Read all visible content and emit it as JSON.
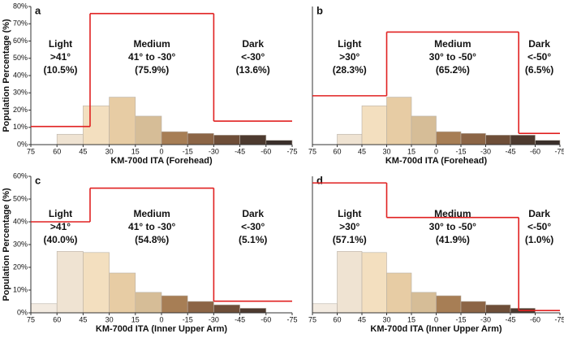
{
  "chart_data": [
    {
      "type": "histogram",
      "title": "a",
      "xlabel": "KM-700d ITA (Forehead)",
      "ylabel": "Population Percentage (%)",
      "bins": [
        75,
        60,
        45,
        30,
        15,
        0,
        -15,
        -30,
        -45,
        -60,
        -75
      ],
      "counts": [
        0,
        6,
        22.5,
        27.5,
        16.5,
        7.5,
        6.5,
        5.5,
        5.5,
        2.5
      ],
      "bar_colors": [
        "#f3ebe1",
        "#efe3d2",
        "#f3dfbf",
        "#e7cca4",
        "#d6bd97",
        "#a77e55",
        "#8c6546",
        "#6e4e38",
        "#4d3a2f",
        "#3a2f2a"
      ],
      "xlim": [
        75,
        -75
      ],
      "xticks": [
        75,
        60,
        45,
        30,
        15,
        0,
        -15,
        -30,
        -45,
        -60,
        -75
      ],
      "ylim": [
        0,
        80
      ],
      "yticks": [
        {
          "value": 0,
          "label": "0%"
        },
        {
          "value": 10,
          "label": "10%"
        },
        {
          "value": 20,
          "label": "20%"
        },
        {
          "value": 30,
          "label": "30%"
        },
        {
          "value": 40,
          "label": "40%"
        },
        {
          "value": 50,
          "label": "50%"
        },
        {
          "value": 60,
          "label": "60%"
        },
        {
          "value": 70,
          "label": "70%"
        },
        {
          "value": 80,
          "label": "80%"
        }
      ],
      "line_color": "#e02020",
      "region_edges": [
        75,
        41,
        -30,
        -75
      ],
      "regions": [
        {
          "name": "Light",
          "range": ">41°",
          "value": 10.5,
          "value_label": "(10.5%)"
        },
        {
          "name": "Medium",
          "range": "41° to -30°",
          "value": 75.9,
          "value_label": "(75.9%)"
        },
        {
          "name": "Dark",
          "range": "<-30°",
          "value": 13.6,
          "value_label": "(13.6%)"
        }
      ]
    },
    {
      "type": "histogram",
      "title": "b",
      "xlabel": "KM-700d ITA (Forehead)",
      "bins": [
        75,
        60,
        45,
        30,
        15,
        0,
        -15,
        -30,
        -45,
        -60,
        -75
      ],
      "counts": [
        0,
        6,
        22.5,
        27.5,
        16.5,
        7.5,
        6.5,
        5.5,
        5.5,
        2.5
      ],
      "bar_colors": [
        "#f3ebe1",
        "#efe3d2",
        "#f3dfbf",
        "#e7cca4",
        "#d6bd97",
        "#a77e55",
        "#8c6546",
        "#6e4e38",
        "#4d3a2f",
        "#3a2f2a"
      ],
      "xlim": [
        75,
        -75
      ],
      "xticks": [
        75,
        60,
        45,
        30,
        15,
        0,
        -15,
        -30,
        -45,
        -60,
        -75
      ],
      "ylim": [
        0,
        80
      ],
      "line_color": "#e02020",
      "region_edges": [
        75,
        30,
        -50,
        -75
      ],
      "regions": [
        {
          "name": "Light",
          "range": ">30°",
          "value": 28.3,
          "value_label": "(28.3%)"
        },
        {
          "name": "Medium",
          "range": "30° to -50°",
          "value": 65.2,
          "value_label": "(65.2%)"
        },
        {
          "name": "Dark",
          "range": "<-50°",
          "value": 6.5,
          "value_label": "(6.5%)"
        }
      ]
    },
    {
      "type": "histogram",
      "title": "c",
      "xlabel": "KM-700d ITA (Inner Upper Arm)",
      "ylabel": "Population Percentage (%)",
      "bins": [
        75,
        60,
        45,
        30,
        15,
        0,
        -15,
        -30,
        -45,
        -60,
        -75
      ],
      "counts": [
        4,
        27,
        26.5,
        17.5,
        9,
        7.5,
        5,
        3.5,
        2,
        0
      ],
      "bar_colors": [
        "#f3ebe1",
        "#efe3d2",
        "#f3dfbf",
        "#e7cca4",
        "#d6bd97",
        "#a77e55",
        "#8c6546",
        "#6e4e38",
        "#4d3a2f",
        "#3a2f2a"
      ],
      "xlim": [
        75,
        -75
      ],
      "xticks": [
        75,
        60,
        45,
        30,
        15,
        0,
        -15,
        -30,
        -45,
        -60,
        -75
      ],
      "ylim": [
        0,
        60
      ],
      "yticks": [
        {
          "value": 0,
          "label": "0%"
        },
        {
          "value": 10,
          "label": "10%"
        },
        {
          "value": 20,
          "label": "20%"
        },
        {
          "value": 30,
          "label": "30%"
        },
        {
          "value": 40,
          "label": "40%"
        },
        {
          "value": 50,
          "label": "50%"
        },
        {
          "value": 60,
          "label": "60%"
        }
      ],
      "line_color": "#e02020",
      "region_edges": [
        75,
        41,
        -30,
        -75
      ],
      "regions": [
        {
          "name": "Light",
          "range": ">41°",
          "value": 40.0,
          "value_label": "(40.0%)"
        },
        {
          "name": "Medium",
          "range": "41° to -30°",
          "value": 54.8,
          "value_label": "(54.8%)"
        },
        {
          "name": "Dark",
          "range": "<-30°",
          "value": 5.1,
          "value_label": "(5.1%)"
        }
      ]
    },
    {
      "type": "histogram",
      "title": "d",
      "xlabel": "KM-700d ITA (Inner Upper Arm)",
      "bins": [
        75,
        60,
        45,
        30,
        15,
        0,
        -15,
        -30,
        -45,
        -60,
        -75
      ],
      "counts": [
        4,
        27,
        26.5,
        17.5,
        9,
        7.5,
        5,
        3.5,
        2,
        0
      ],
      "bar_colors": [
        "#f3ebe1",
        "#efe3d2",
        "#f3dfbf",
        "#e7cca4",
        "#d6bd97",
        "#a77e55",
        "#8c6546",
        "#6e4e38",
        "#4d3a2f",
        "#3a2f2a"
      ],
      "xlim": [
        75,
        -75
      ],
      "xticks": [
        75,
        60,
        45,
        30,
        15,
        0,
        -15,
        -30,
        -45,
        -60,
        -75
      ],
      "ylim": [
        0,
        60
      ],
      "line_color": "#e02020",
      "region_edges": [
        75,
        30,
        -50,
        -75
      ],
      "regions": [
        {
          "name": "Light",
          "range": ">30°",
          "value": 57.1,
          "value_label": "(57.1%)"
        },
        {
          "name": "Medium",
          "range": "30° to -50°",
          "value": 41.9,
          "value_label": "(41.9%)"
        },
        {
          "name": "Dark",
          "range": "<-50°",
          "value": 1.0,
          "value_label": "(1.0%)"
        }
      ]
    }
  ]
}
